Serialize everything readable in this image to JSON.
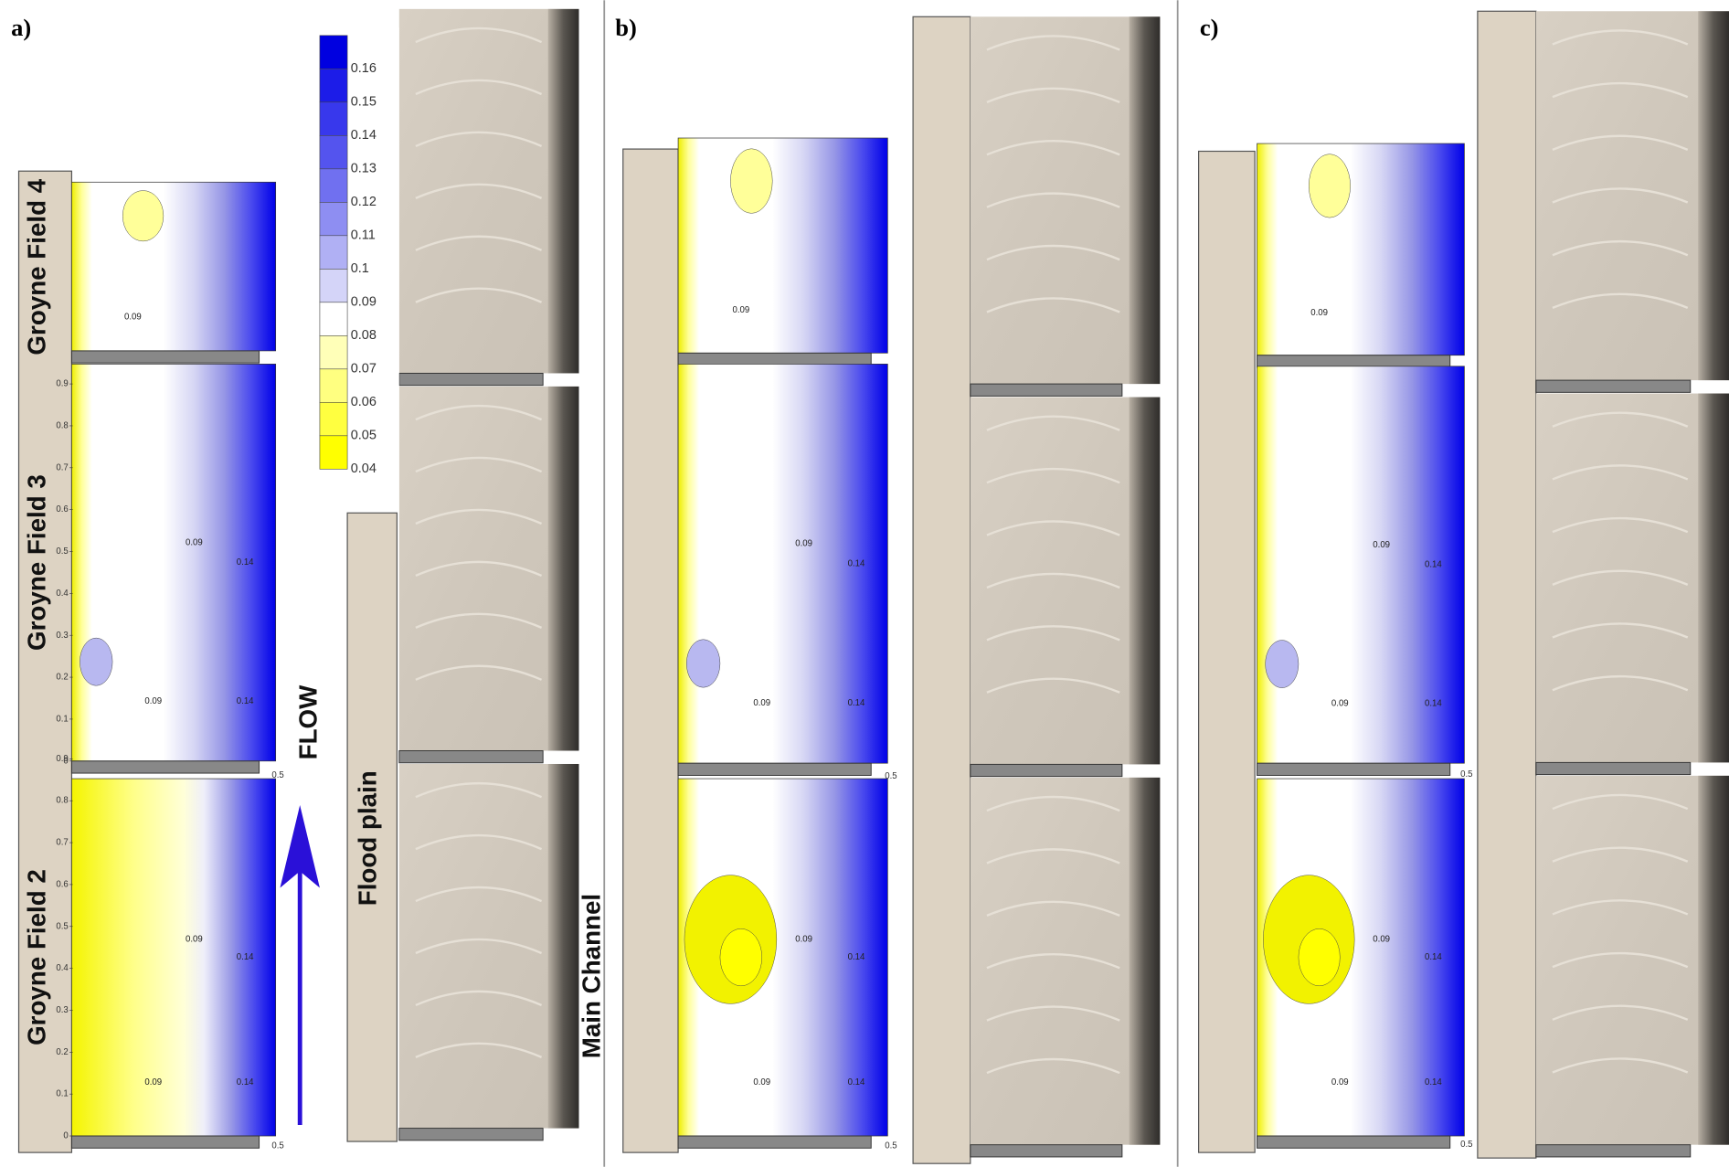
{
  "panels": [
    {
      "label": "a)"
    },
    {
      "label": "b)"
    },
    {
      "label": "c)"
    }
  ],
  "field_labels": [
    "Groyne Field 4",
    "Groyne Field 3",
    "Groyne Field 2"
  ],
  "colorbar": {
    "levels": [
      "0.16",
      "0.15",
      "0.14",
      "0.13",
      "0.12",
      "0.11",
      "0.1",
      "0.09",
      "0.08",
      "0.07",
      "0.06",
      "0.05",
      "0.04"
    ]
  },
  "flow_label": "FLOW",
  "flood_plain_label": "Flood plain",
  "main_channel_label": "Main Channel",
  "y_axis_ticks": [
    "0",
    "0.1",
    "0.2",
    "0.3",
    "0.4",
    "0.5",
    "0.6",
    "0.7",
    "0.8",
    "0.9"
  ],
  "x_axis_end": "0.5",
  "contour_labels": [
    "0.09",
    "0.14"
  ]
}
